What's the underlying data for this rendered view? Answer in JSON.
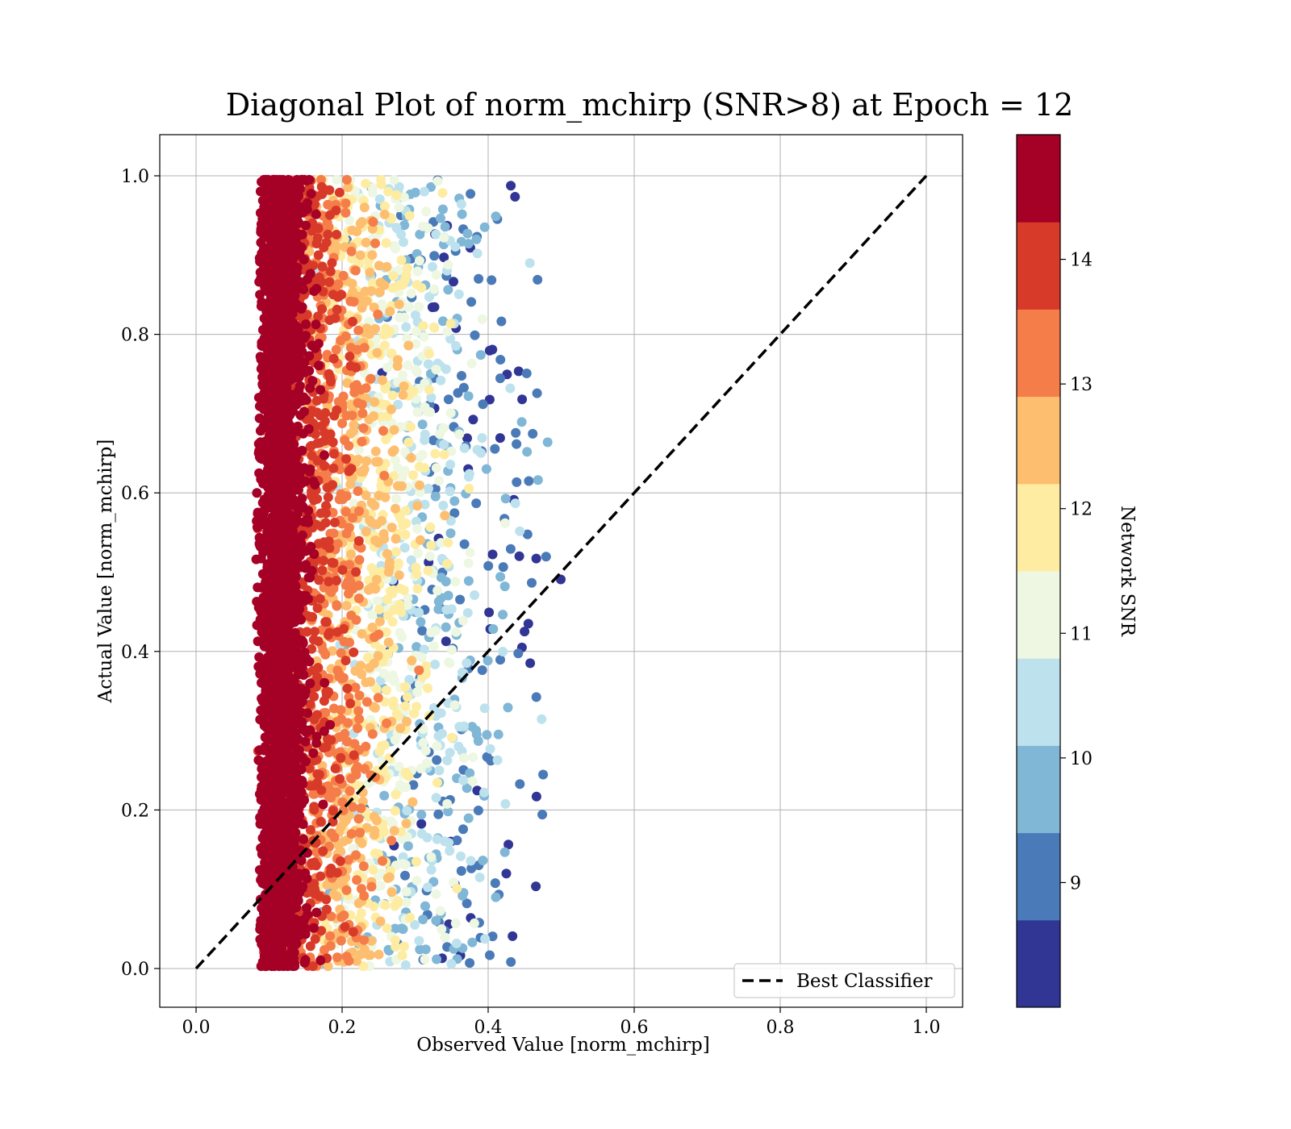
{
  "chart_data": {
    "type": "scatter",
    "title": "Diagonal Plot of norm_mchirp (SNR>8) at Epoch = 12",
    "xlabel": "Observed Value [norm_mchirp]",
    "ylabel": "Actual Value [norm_mchirp]",
    "xlim": [
      -0.05,
      1.05
    ],
    "ylim": [
      -0.05,
      1.05
    ],
    "x_ticks": [
      "0.0",
      "0.2",
      "0.4",
      "0.6",
      "0.8",
      "1.0"
    ],
    "y_ticks": [
      "0.0",
      "0.2",
      "0.4",
      "0.6",
      "0.8",
      "1.0"
    ],
    "grid": true,
    "legend": {
      "placement": "lower-right",
      "entries": [
        "Best Classifier"
      ]
    },
    "reference_line": {
      "name": "Best Classifier",
      "style": "dashed",
      "color": "#000000",
      "points": [
        [
          0.0,
          0.0
        ],
        [
          1.0,
          1.0
        ]
      ]
    },
    "colorbar": {
      "label": "Network SNR",
      "range": [
        8,
        15
      ],
      "ticks": [
        "9",
        "10",
        "11",
        "12",
        "13",
        "14"
      ],
      "colors": [
        "#313695",
        "#4575b4",
        "#74add1",
        "#abd9e9",
        "#e0f3f8",
        "#ffffbf",
        "#fee090",
        "#fdae61",
        "#f46d43",
        "#d73027",
        "#a50026"
      ],
      "bands": [
        "#313695",
        "#4a7ab7",
        "#80b6d6",
        "#bde2ee",
        "#eef7e1",
        "#feeca2",
        "#fdbe70",
        "#f57d4a",
        "#d83a2a",
        "#a50026"
      ]
    },
    "scatter_summary": {
      "x_range": [
        0.08,
        0.5
      ],
      "y_range": [
        0.0,
        1.0
      ],
      "high_snr_x_band": [
        0.08,
        0.16
      ],
      "low_snr_x_band": [
        0.25,
        0.45
      ]
    }
  }
}
